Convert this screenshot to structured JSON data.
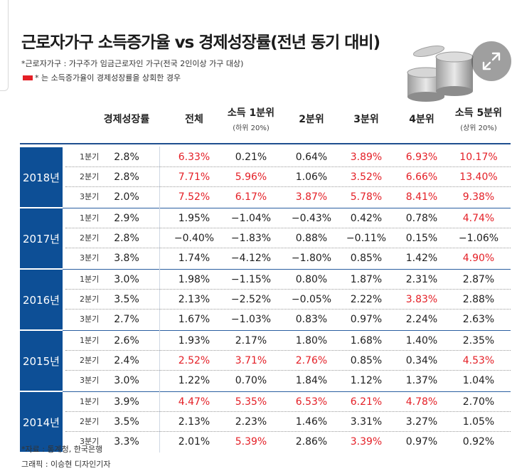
{
  "chart_data": {
    "type": "table",
    "title": "근로자가구 소득증가율 vs 경제성장률(전년 동기 대비)",
    "notes": [
      "*근로자가구 : 가구주가 임금근로자인 가구(전국 2인이상 가구 대상)",
      "* 는 소득증가율이 경제성장률을 상회한 경우"
    ],
    "highlight_color": "#e41f26",
    "header_color": "#0d4f96",
    "columns": [
      {
        "label": "경제성장률",
        "sub": ""
      },
      {
        "label": "전체",
        "sub": ""
      },
      {
        "label": "소득 1분위",
        "sub": "(하위 20%)"
      },
      {
        "label": "2분위",
        "sub": ""
      },
      {
        "label": "3분위",
        "sub": ""
      },
      {
        "label": "4분위",
        "sub": ""
      },
      {
        "label": "소득 5분위",
        "sub": "(상위 20%)"
      }
    ],
    "groups": [
      {
        "year": "2018년",
        "rows": [
          {
            "quarter": "1분기",
            "values": [
              "2.8%",
              "6.33%",
              "0.21%",
              "0.64%",
              "3.89%",
              "6.93%",
              "10.17%"
            ],
            "highlight": [
              false,
              true,
              false,
              false,
              true,
              true,
              true
            ]
          },
          {
            "quarter": "2분기",
            "values": [
              "2.8%",
              "7.71%",
              "5.96%",
              "1.06%",
              "3.52%",
              "6.66%",
              "13.40%"
            ],
            "highlight": [
              false,
              true,
              true,
              false,
              true,
              true,
              true
            ]
          },
          {
            "quarter": "3분기",
            "values": [
              "2.0%",
              "7.52%",
              "6.17%",
              "3.87%",
              "5.78%",
              "8.41%",
              "9.38%"
            ],
            "highlight": [
              false,
              true,
              true,
              true,
              true,
              true,
              true
            ]
          }
        ]
      },
      {
        "year": "2017년",
        "rows": [
          {
            "quarter": "1분기",
            "values": [
              "2.9%",
              "1.95%",
              "−1.04%",
              "−0.43%",
              "0.42%",
              "0.78%",
              "4.74%"
            ],
            "highlight": [
              false,
              false,
              false,
              false,
              false,
              false,
              true
            ]
          },
          {
            "quarter": "2분기",
            "values": [
              "2.8%",
              "−0.40%",
              "−1.83%",
              "0.88%",
              "−0.11%",
              "0.15%",
              "−1.06%"
            ],
            "highlight": [
              false,
              false,
              false,
              false,
              false,
              false,
              false
            ]
          },
          {
            "quarter": "3분기",
            "values": [
              "3.8%",
              "1.74%",
              "−4.12%",
              "−1.80%",
              "0.85%",
              "1.42%",
              "4.90%"
            ],
            "highlight": [
              false,
              false,
              false,
              false,
              false,
              false,
              true
            ]
          }
        ]
      },
      {
        "year": "2016년",
        "rows": [
          {
            "quarter": "1분기",
            "values": [
              "3.0%",
              "1.98%",
              "−1.15%",
              "0.80%",
              "1.87%",
              "2.31%",
              "2.87%"
            ],
            "highlight": [
              false,
              false,
              false,
              false,
              false,
              false,
              false
            ]
          },
          {
            "quarter": "2분기",
            "values": [
              "3.5%",
              "2.13%",
              "−2.52%",
              "−0.05%",
              "2.22%",
              "3.83%",
              "2.88%"
            ],
            "highlight": [
              false,
              false,
              false,
              false,
              false,
              true,
              false
            ]
          },
          {
            "quarter": "3분기",
            "values": [
              "2.7%",
              "1.67%",
              "−1.03%",
              "0.83%",
              "0.97%",
              "2.24%",
              "2.63%"
            ],
            "highlight": [
              false,
              false,
              false,
              false,
              false,
              false,
              false
            ]
          }
        ]
      },
      {
        "year": "2015년",
        "rows": [
          {
            "quarter": "1분기",
            "values": [
              "2.6%",
              "1.93%",
              "2.17%",
              "1.80%",
              "1.68%",
              "1.40%",
              "2.35%"
            ],
            "highlight": [
              false,
              false,
              false,
              false,
              false,
              false,
              false
            ]
          },
          {
            "quarter": "2분기",
            "values": [
              "2.4%",
              "2.52%",
              "3.71%",
              "2.76%",
              "0.85%",
              "0.34%",
              "4.53%"
            ],
            "highlight": [
              false,
              true,
              true,
              true,
              false,
              false,
              true
            ]
          },
          {
            "quarter": "3분기",
            "values": [
              "3.0%",
              "1.22%",
              "0.70%",
              "1.84%",
              "1.12%",
              "1.37%",
              "1.04%"
            ],
            "highlight": [
              false,
              false,
              false,
              false,
              false,
              false,
              false
            ]
          }
        ]
      },
      {
        "year": "2014년",
        "rows": [
          {
            "quarter": "1분기",
            "values": [
              "3.9%",
              "4.47%",
              "5.35%",
              "6.53%",
              "6.21%",
              "4.78%",
              "2.70%"
            ],
            "highlight": [
              false,
              true,
              true,
              true,
              true,
              true,
              false
            ]
          },
          {
            "quarter": "2분기",
            "values": [
              "3.5%",
              "2.13%",
              "2.23%",
              "1.46%",
              "3.31%",
              "3.27%",
              "1.05%"
            ],
            "highlight": [
              false,
              false,
              false,
              false,
              false,
              false,
              false
            ]
          },
          {
            "quarter": "3분기",
            "values": [
              "3.3%",
              "2.01%",
              "5.39%",
              "2.86%",
              "3.39%",
              "0.97%",
              "0.92%"
            ],
            "highlight": [
              false,
              false,
              true,
              false,
              true,
              false,
              false
            ]
          }
        ]
      }
    ],
    "source": "*자료 : 통계청, 한국은행",
    "credit": "그래픽 : 이승현 디자인기자"
  },
  "ui": {
    "expand_icon": "expand-arrows-icon",
    "coins_icon": "coin-stack-icon"
  }
}
